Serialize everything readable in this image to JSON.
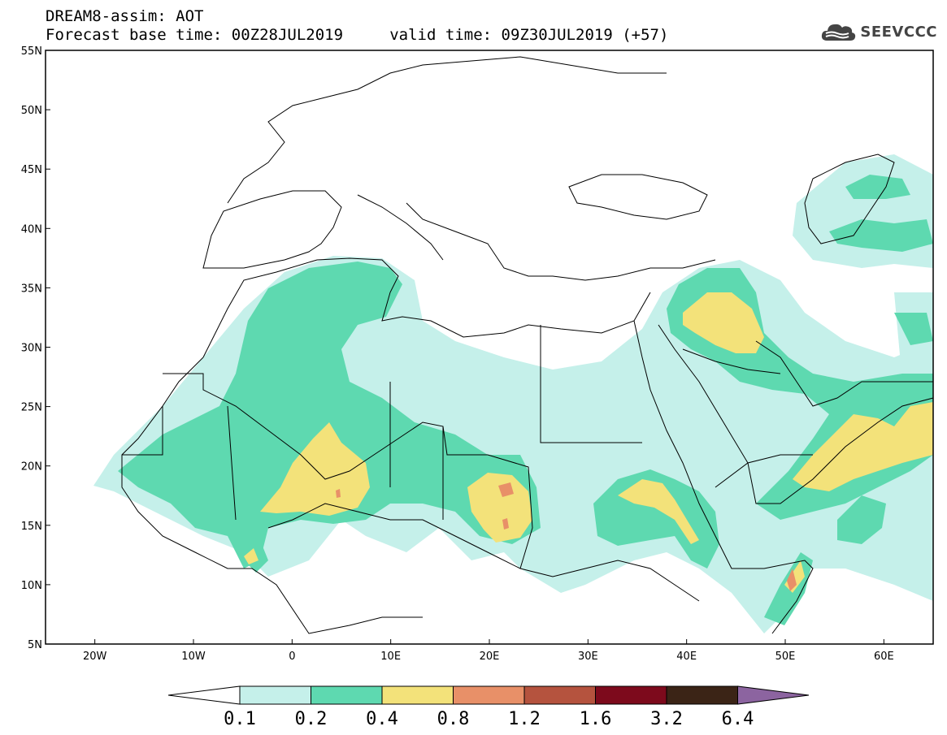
{
  "header": {
    "line1": "DREAM8-assim: AOT",
    "line2": "Forecast base time: 00Z28JUL2019     valid time: 09Z30JUL2019 (+57)"
  },
  "logo": {
    "text": "SEEVCCC",
    "icon": "cloud-icon"
  },
  "map": {
    "extent": {
      "lon": [
        -25,
        65
      ],
      "lat": [
        5,
        55
      ]
    },
    "lat_ticks": [
      "5N",
      "10N",
      "15N",
      "20N",
      "25N",
      "30N",
      "35N",
      "40N",
      "45N",
      "50N",
      "55N"
    ],
    "lon_ticks": [
      "20W",
      "10W",
      "0",
      "10E",
      "20E",
      "30E",
      "40E",
      "50E",
      "60E"
    ],
    "variable": "AOT"
  },
  "colorbar": {
    "levels": [
      "0.1",
      "0.2",
      "0.4",
      "0.8",
      "1.2",
      "1.6",
      "3.2",
      "6.4"
    ],
    "colors": [
      "#c5f0ea",
      "#5ed9b0",
      "#f3e27a",
      "#e89068",
      "#b5533e",
      "#7d0a1c",
      "#3b2416",
      "#8c64a0"
    ],
    "low_color": "#ffffff"
  },
  "colors": {
    "frame": "#000000",
    "coast": "#000000"
  }
}
